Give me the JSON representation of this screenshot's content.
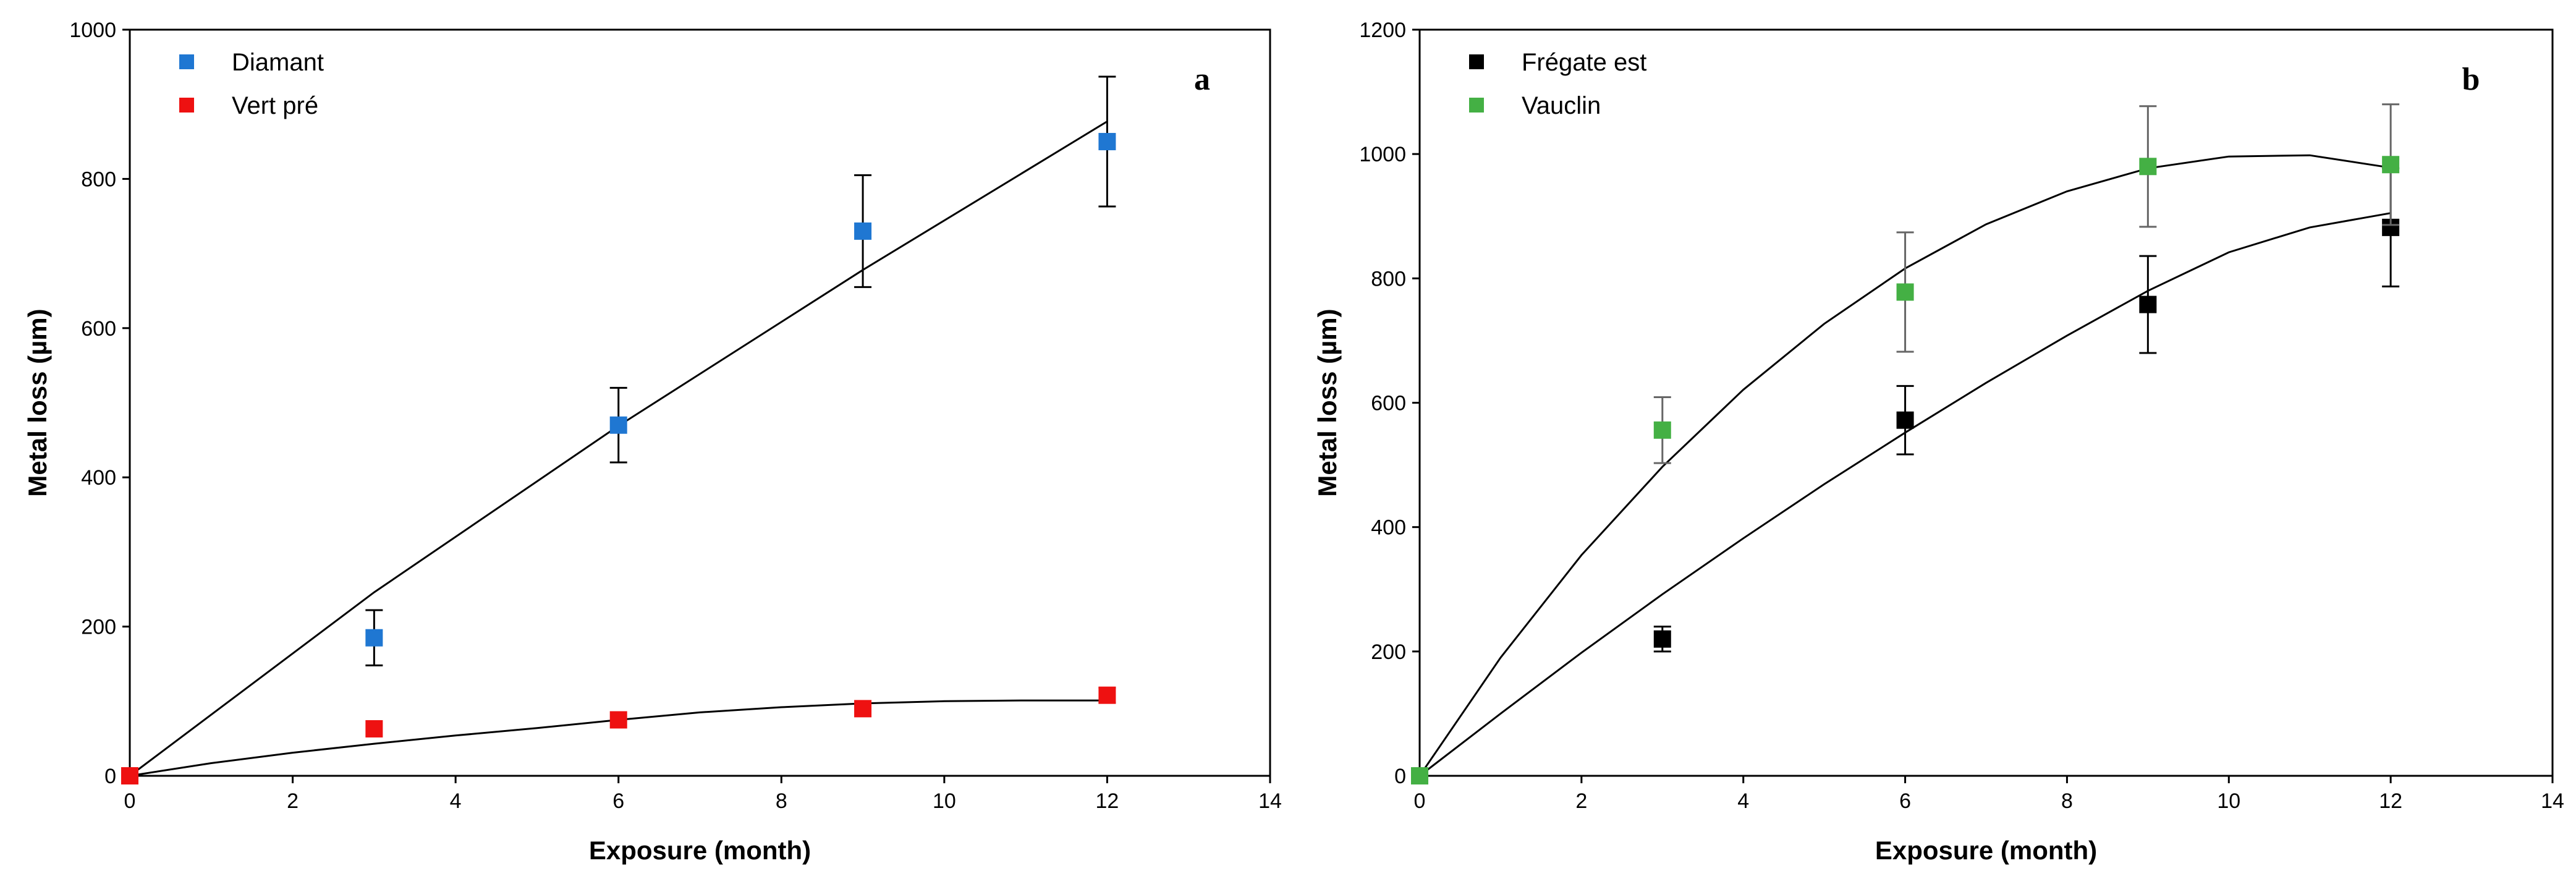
{
  "chart_data": [
    {
      "type": "scatter",
      "panel_label": "a",
      "xlabel": "Exposure (month)",
      "ylabel": "Metal loss (µm)",
      "xlim": [
        0,
        14
      ],
      "ylim": [
        0,
        1000
      ],
      "xticks": [
        0,
        2,
        4,
        6,
        8,
        10,
        12,
        14
      ],
      "yticks": [
        0,
        200,
        400,
        600,
        800,
        1000
      ],
      "legend_position": "top-left",
      "series": [
        {
          "name": "Diamant",
          "color": "#1f77d2",
          "points": [
            {
              "x": 0,
              "y": 0,
              "err": 0
            },
            {
              "x": 3,
              "y": 185,
              "err": 37
            },
            {
              "x": 6,
              "y": 470,
              "err": 50
            },
            {
              "x": 9,
              "y": 730,
              "err": 75
            },
            {
              "x": 12,
              "y": 850,
              "err": 87
            }
          ],
          "fit": [
            [
              0,
              0
            ],
            [
              3,
              246
            ],
            [
              6,
              469
            ],
            [
              9,
              678
            ],
            [
              12,
              877
            ]
          ]
        },
        {
          "name": "Vert pré",
          "color": "#ee1111",
          "points": [
            {
              "x": 0,
              "y": 0,
              "err": 0
            },
            {
              "x": 3,
              "y": 63,
              "err": 0
            },
            {
              "x": 6,
              "y": 75,
              "err": 0
            },
            {
              "x": 9,
              "y": 90,
              "err": 0
            },
            {
              "x": 12,
              "y": 108,
              "err": 10
            }
          ],
          "fit": [
            [
              0,
              0
            ],
            [
              1,
              17
            ],
            [
              2,
              31
            ],
            [
              3,
              43
            ],
            [
              4,
              54
            ],
            [
              5,
              64
            ],
            [
              6,
              75
            ],
            [
              7,
              85
            ],
            [
              8,
              92
            ],
            [
              9,
              97
            ],
            [
              10,
              100
            ],
            [
              11,
              101
            ],
            [
              12,
              101
            ]
          ]
        }
      ]
    },
    {
      "type": "scatter",
      "panel_label": "b",
      "xlabel": "Exposure (month)",
      "ylabel": "Metal loss (µm)",
      "xlim": [
        0,
        14
      ],
      "ylim": [
        0,
        1200
      ],
      "xticks": [
        0,
        2,
        4,
        6,
        8,
        10,
        12,
        14
      ],
      "yticks": [
        0,
        200,
        400,
        600,
        800,
        1000,
        1200
      ],
      "legend_position": "top-left",
      "series": [
        {
          "name": "Frégate est",
          "color": "#000000",
          "points": [
            {
              "x": 0,
              "y": 0,
              "err": 0
            },
            {
              "x": 3,
              "y": 220,
              "err": 20
            },
            {
              "x": 6,
              "y": 572,
              "err": 55
            },
            {
              "x": 9,
              "y": 758,
              "err": 78
            },
            {
              "x": 12,
              "y": 882,
              "err": 95
            }
          ],
          "fit": [
            [
              0,
              0
            ],
            [
              1,
              100
            ],
            [
              2,
              198
            ],
            [
              3,
              292
            ],
            [
              4,
              382
            ],
            [
              5,
              469
            ],
            [
              6,
              552
            ],
            [
              7,
              632
            ],
            [
              8,
              708
            ],
            [
              9,
              780
            ],
            [
              10,
              842
            ],
            [
              11,
              882
            ],
            [
              12,
              905
            ]
          ]
        },
        {
          "name": "Vauclin",
          "color": "#44b044",
          "points": [
            {
              "x": 0,
              "y": 0,
              "err": 0
            },
            {
              "x": 3,
              "y": 556,
              "err": 53
            },
            {
              "x": 6,
              "y": 778,
              "err": 96
            },
            {
              "x": 9,
              "y": 980,
              "err": 97
            },
            {
              "x": 12,
              "y": 983,
              "err": 97
            }
          ],
          "fit": [
            [
              0,
              0
            ],
            [
              1,
              190
            ],
            [
              2,
              355
            ],
            [
              3,
              497
            ],
            [
              4,
              621
            ],
            [
              5,
              727
            ],
            [
              6,
              816
            ],
            [
              7,
              887
            ],
            [
              8,
              940
            ],
            [
              9,
              977
            ],
            [
              10,
              996
            ],
            [
              11,
              998
            ],
            [
              12,
              978
            ]
          ]
        }
      ]
    }
  ]
}
